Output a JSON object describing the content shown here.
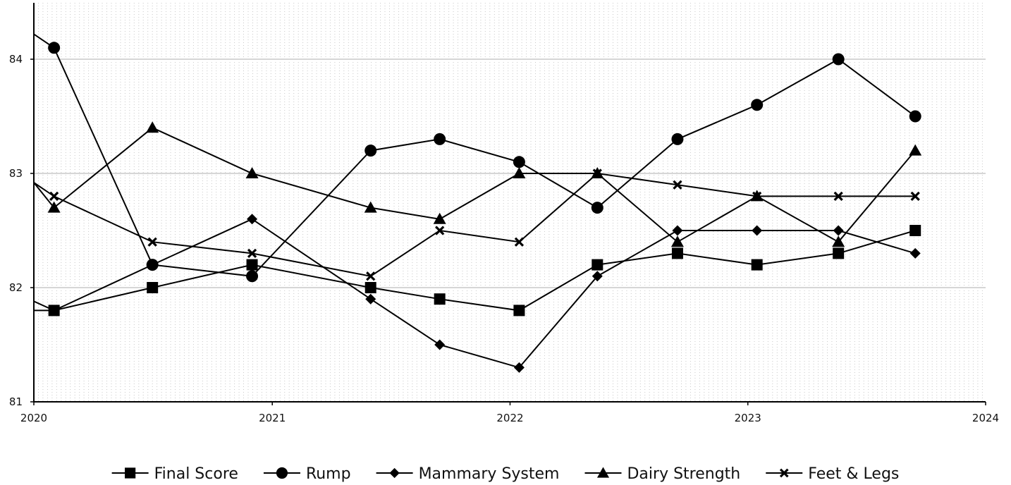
{
  "chart_data": {
    "type": "line",
    "title": "",
    "xlabel": "",
    "ylabel": "",
    "xlim": [
      "2020-01-01",
      "2024-01-01"
    ],
    "ylim": [
      81,
      84.5
    ],
    "x_ticks": [
      "2020",
      "2021",
      "2022",
      "2023",
      "2024"
    ],
    "y_ticks": [
      "81",
      "82",
      "83",
      "84"
    ],
    "grid": {
      "horizontal_major": true,
      "vertical_minor_dotted": true
    },
    "legend_position": "bottom-center",
    "x": [
      "2020-02-01",
      "2020-07-01",
      "2020-12-01",
      "2021-06-01",
      "2021-09-15",
      "2022-01-15",
      "2022-05-15",
      "2022-09-15",
      "2023-01-15",
      "2023-05-20",
      "2023-09-15"
    ],
    "series": [
      {
        "name": "Final Score",
        "marker": "square",
        "values": [
          81.8,
          82.0,
          82.2,
          82.0,
          81.9,
          81.8,
          82.2,
          82.3,
          82.2,
          82.3,
          82.5
        ]
      },
      {
        "name": "Rump",
        "marker": "circle",
        "values": [
          84.1,
          82.2,
          82.1,
          83.2,
          83.3,
          83.1,
          82.7,
          83.3,
          83.6,
          84.0,
          83.5
        ]
      },
      {
        "name": "Mammary System",
        "marker": "diamond",
        "values": [
          81.8,
          82.2,
          82.6,
          81.9,
          81.5,
          81.3,
          82.1,
          82.5,
          82.5,
          82.5,
          82.3
        ]
      },
      {
        "name": "Dairy Strength",
        "marker": "triangle",
        "values": [
          82.7,
          83.4,
          83.0,
          82.7,
          82.6,
          83.0,
          83.0,
          82.4,
          82.8,
          82.4,
          83.2
        ]
      },
      {
        "name": "Feet & Legs",
        "marker": "cross",
        "values": [
          82.8,
          82.4,
          82.3,
          82.1,
          82.5,
          82.4,
          83.0,
          82.9,
          82.8,
          82.8,
          82.8
        ]
      }
    ]
  }
}
